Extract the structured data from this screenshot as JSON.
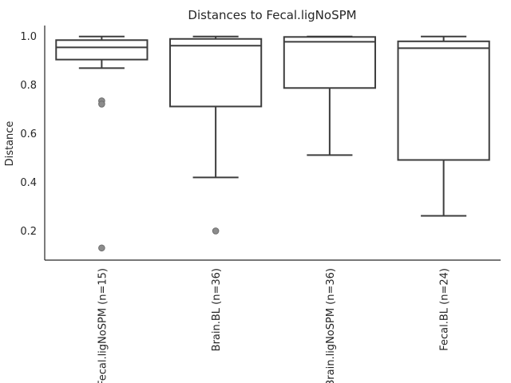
{
  "chart_data": {
    "type": "box",
    "title": "Distances to Fecal.ligNoSPM",
    "xlabel": "",
    "ylabel": "Distance",
    "ylim": [
      0.08,
      1.045
    ],
    "yticks": [
      0.2,
      0.4,
      0.6,
      0.8,
      1.0
    ],
    "ytick_labels": [
      "0.2",
      "0.4",
      "0.6",
      "0.8",
      "1.0"
    ],
    "grid": false,
    "categories": [
      "Fecal.ligNoSPM (n=15)",
      "Brain.BL (n=36)",
      "Brain.ligNoSPM (n=36)",
      "Fecal.BL (n=24)"
    ],
    "boxes": [
      {
        "category": "Fecal.ligNoSPM (n=15)",
        "whisker_low": 0.87,
        "q1": 0.905,
        "median": 0.955,
        "q3": 0.985,
        "whisker_high": 1.0,
        "outliers": [
          0.735,
          0.722,
          0.13
        ]
      },
      {
        "category": "Brain.BL (n=36)",
        "whisker_low": 0.42,
        "q1": 0.712,
        "median": 0.962,
        "q3": 0.99,
        "whisker_high": 1.0,
        "outliers": [
          0.2
        ]
      },
      {
        "category": "Brain.ligNoSPM (n=36)",
        "whisker_low": 0.512,
        "q1": 0.788,
        "median": 0.978,
        "q3": 0.998,
        "whisker_high": 1.0,
        "outliers": []
      },
      {
        "category": "Fecal.BL (n=24)",
        "whisker_low": 0.262,
        "q1": 0.492,
        "median": 0.952,
        "q3": 0.98,
        "whisker_high": 1.0,
        "outliers": []
      }
    ]
  }
}
